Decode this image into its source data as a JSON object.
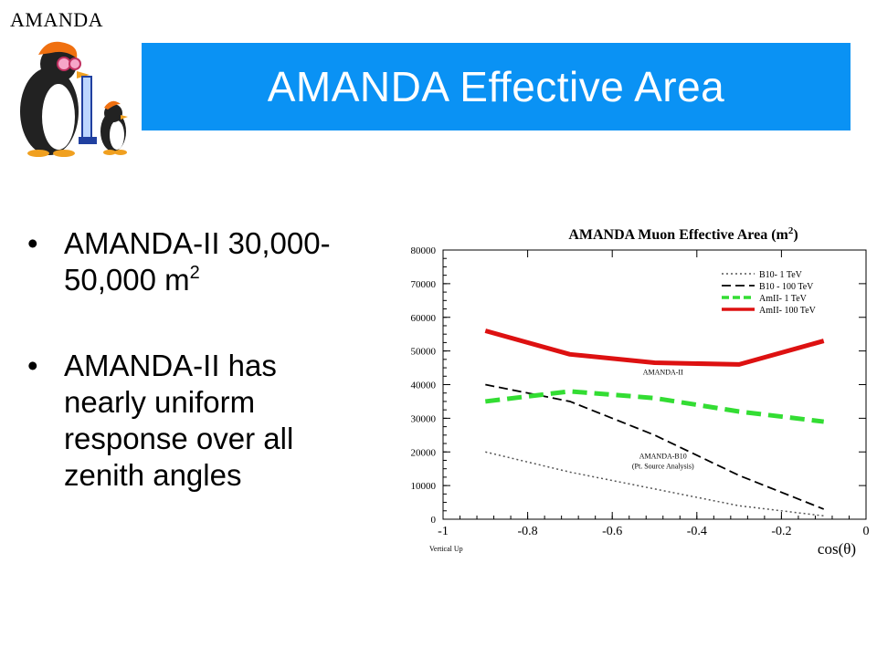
{
  "logo": {
    "text": "AMANDA",
    "icon": "penguin-scientist-icon"
  },
  "slide": {
    "title": "AMANDA Effective Area",
    "bullets": [
      {
        "text": "AMANDA-II 30,000-50,000 m",
        "superscript": "2"
      },
      {
        "text": "AMANDA-II has nearly uniform response over all zenith angles"
      }
    ]
  },
  "chart_data": {
    "type": "line",
    "title": "AMANDA Muon Effective Area (m",
    "title_superscript": "2",
    "title_close": ")",
    "xlabel": "cos(θ)",
    "x_note": "Vertical Up",
    "xlim": [
      -1,
      0
    ],
    "ylim": [
      0,
      80000
    ],
    "x_ticks": [
      "-1",
      "-0.8",
      "-0.6",
      "-0.4",
      "-0.2",
      "0"
    ],
    "y_ticks": [
      "0",
      "10000",
      "20000",
      "30000",
      "40000",
      "50000",
      "60000",
      "70000",
      "80000"
    ],
    "grid": false,
    "legend_position": "top-right",
    "annotations": [
      {
        "text": "AMANDA-II",
        "x": -0.48,
        "y": 43000
      },
      {
        "text": "AMANDA-B10",
        "x": -0.48,
        "y": 18000
      },
      {
        "text": "(Pt. Source Analysis)",
        "x": -0.48,
        "y": 15000
      }
    ],
    "series": [
      {
        "name": "B10- 1 TeV",
        "style": "dotted",
        "color": "#555555",
        "x": [
          -0.9,
          -0.7,
          -0.5,
          -0.3,
          -0.1
        ],
        "y": [
          20000,
          14000,
          9000,
          4000,
          1000
        ]
      },
      {
        "name": "B10 - 100 TeV",
        "style": "dashed",
        "color": "#000000",
        "x": [
          -0.9,
          -0.7,
          -0.5,
          -0.3,
          -0.1
        ],
        "y": [
          40000,
          35000,
          25000,
          13000,
          3000
        ]
      },
      {
        "name": "AmII- 1 TeV",
        "style": "thick-dashed",
        "color": "#33dd33",
        "x": [
          -0.9,
          -0.7,
          -0.5,
          -0.3,
          -0.1
        ],
        "y": [
          35000,
          38000,
          36000,
          32000,
          29000
        ]
      },
      {
        "name": "AmII- 100 TeV",
        "style": "thick-solid",
        "color": "#dd1111",
        "x": [
          -0.9,
          -0.7,
          -0.5,
          -0.3,
          -0.1
        ],
        "y": [
          56000,
          49000,
          46500,
          46000,
          53000
        ]
      }
    ]
  }
}
